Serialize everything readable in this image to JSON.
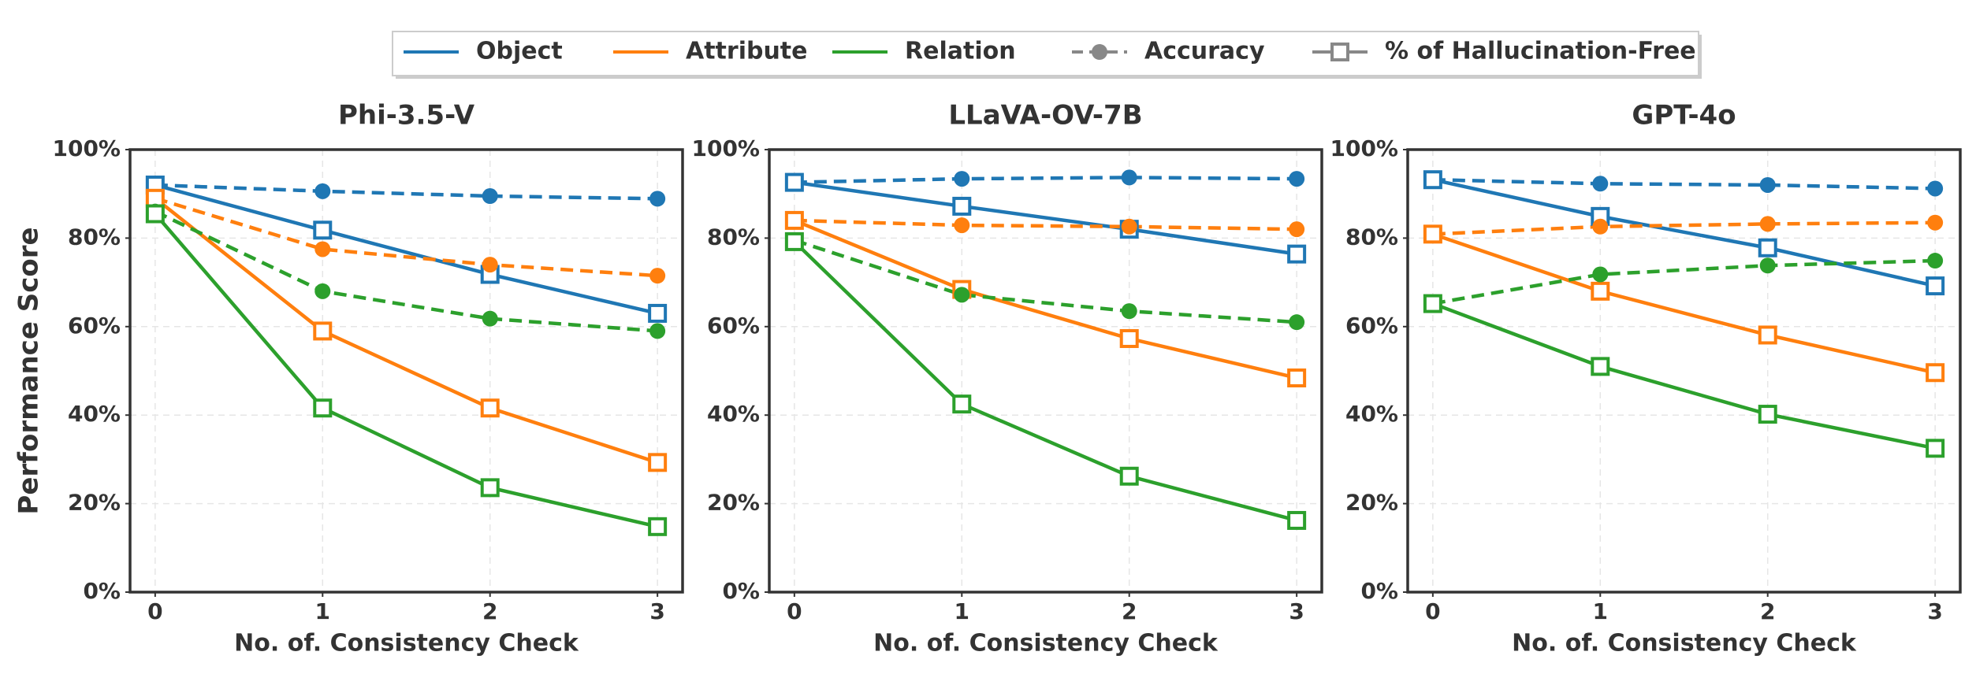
{
  "legend": {
    "entries": [
      {
        "label": "Object",
        "color": "#1f77b4",
        "dash": false,
        "marker": "none"
      },
      {
        "label": "Attribute",
        "color": "#ff7f0e",
        "dash": false,
        "marker": "none"
      },
      {
        "label": "Relation",
        "color": "#2ca02c",
        "dash": false,
        "marker": "none"
      },
      {
        "label": "Accuracy",
        "color": "#888888",
        "dash": true,
        "marker": "circle"
      },
      {
        "label": "% of Hallucination-Free",
        "color": "#888888",
        "dash": false,
        "marker": "square"
      }
    ]
  },
  "chart_data": [
    {
      "type": "line",
      "title": "Phi-3.5-V",
      "xlabel": "No. of. Consistency Check",
      "ylabel": "Performance Score",
      "x": [
        0,
        1,
        2,
        3
      ],
      "xlim": [
        -0.15,
        3.15
      ],
      "xticks": [
        0,
        1,
        2,
        3
      ],
      "ylim": [
        0,
        100
      ],
      "yticks": [
        {
          "value": 0,
          "label": "0%"
        },
        {
          "value": 20,
          "label": "20%"
        },
        {
          "value": 40,
          "label": "40%"
        },
        {
          "value": 60,
          "label": "60%"
        },
        {
          "value": 80,
          "label": "80%"
        },
        {
          "value": 100,
          "label": "100%"
        }
      ],
      "grid": true,
      "series": [
        {
          "color": "#1f77b4",
          "dash": true,
          "marker": "circle",
          "values": [
            92,
            90.6,
            89.5,
            88.9
          ]
        },
        {
          "color": "#1f77b4",
          "dash": false,
          "marker": "square",
          "values": [
            92,
            81.8,
            71.8,
            63
          ]
        },
        {
          "color": "#ff7f0e",
          "dash": true,
          "marker": "circle",
          "values": [
            89,
            77.5,
            74,
            71.5
          ]
        },
        {
          "color": "#ff7f0e",
          "dash": false,
          "marker": "square",
          "values": [
            89,
            59,
            41.6,
            29.3
          ]
        },
        {
          "color": "#2ca02c",
          "dash": true,
          "marker": "circle",
          "values": [
            86,
            68,
            61.8,
            59
          ]
        },
        {
          "color": "#2ca02c",
          "dash": false,
          "marker": "square",
          "values": [
            85.5,
            41.6,
            23.6,
            14.8
          ]
        }
      ]
    },
    {
      "type": "line",
      "title": "LLaVA-OV-7B",
      "xlabel": "No. of. Consistency Check",
      "x": [
        0,
        1,
        2,
        3
      ],
      "xlim": [
        -0.15,
        3.15
      ],
      "xticks": [
        0,
        1,
        2,
        3
      ],
      "ylim": [
        0,
        100
      ],
      "yticks": [
        {
          "value": 0,
          "label": "0%"
        },
        {
          "value": 20,
          "label": "20%"
        },
        {
          "value": 40,
          "label": "40%"
        },
        {
          "value": 60,
          "label": "60%"
        },
        {
          "value": 80,
          "label": "80%"
        },
        {
          "value": 100,
          "label": "100%"
        }
      ],
      "grid": true,
      "series": [
        {
          "color": "#1f77b4",
          "dash": true,
          "marker": "circle",
          "values": [
            92.6,
            93.4,
            93.7,
            93.4
          ]
        },
        {
          "color": "#1f77b4",
          "dash": false,
          "marker": "square",
          "values": [
            92.6,
            87.2,
            82,
            76.4
          ]
        },
        {
          "color": "#ff7f0e",
          "dash": true,
          "marker": "circle",
          "values": [
            84,
            82.9,
            82.6,
            82
          ]
        },
        {
          "color": "#ff7f0e",
          "dash": false,
          "marker": "square",
          "values": [
            84,
            68.4,
            57.3,
            48.4
          ]
        },
        {
          "color": "#2ca02c",
          "dash": true,
          "marker": "circle",
          "values": [
            79.5,
            67.2,
            63.5,
            61
          ]
        },
        {
          "color": "#2ca02c",
          "dash": false,
          "marker": "square",
          "values": [
            79.2,
            42.5,
            26.2,
            16.2
          ]
        }
      ]
    },
    {
      "type": "line",
      "title": "GPT-4o",
      "xlabel": "No. of. Consistency Check",
      "x": [
        0,
        1,
        2,
        3
      ],
      "xlim": [
        -0.15,
        3.15
      ],
      "xticks": [
        0,
        1,
        2,
        3
      ],
      "ylim": [
        0,
        100
      ],
      "yticks": [
        {
          "value": 0,
          "label": "0%"
        },
        {
          "value": 20,
          "label": "20%"
        },
        {
          "value": 40,
          "label": "40%"
        },
        {
          "value": 60,
          "label": "60%"
        },
        {
          "value": 80,
          "label": "80%"
        },
        {
          "value": 100,
          "label": "100%"
        }
      ],
      "grid": true,
      "series": [
        {
          "color": "#1f77b4",
          "dash": true,
          "marker": "circle",
          "values": [
            93.2,
            92.3,
            92,
            91.2
          ]
        },
        {
          "color": "#1f77b4",
          "dash": false,
          "marker": "square",
          "values": [
            93.2,
            84.9,
            77.8,
            69.2
          ]
        },
        {
          "color": "#ff7f0e",
          "dash": true,
          "marker": "circle",
          "values": [
            80.9,
            82.6,
            83.2,
            83.5
          ]
        },
        {
          "color": "#ff7f0e",
          "dash": false,
          "marker": "square",
          "values": [
            80.9,
            68,
            58.1,
            49.6
          ]
        },
        {
          "color": "#2ca02c",
          "dash": true,
          "marker": "circle",
          "values": [
            65.2,
            71.8,
            73.8,
            74.9
          ]
        },
        {
          "color": "#2ca02c",
          "dash": false,
          "marker": "square",
          "values": [
            65.2,
            51,
            40.2,
            32.5
          ]
        }
      ]
    }
  ]
}
